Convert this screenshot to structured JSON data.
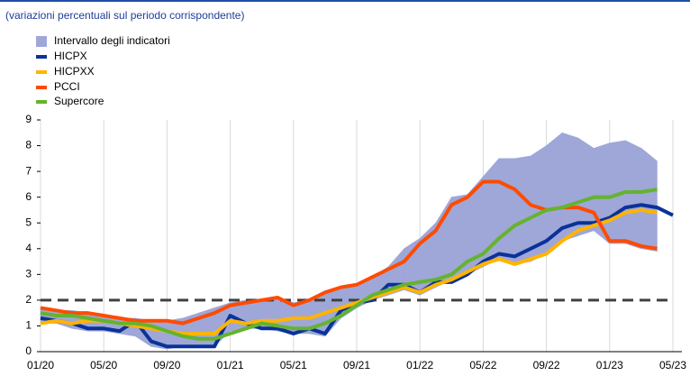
{
  "chart_data": {
    "type": "line",
    "subtitle": "(variazioni percentuali sul periodo corrispondente)",
    "categories": [
      "01/20",
      null,
      null,
      null,
      "05/20",
      null,
      null,
      null,
      "09/20",
      null,
      null,
      null,
      "01/21",
      null,
      null,
      null,
      "05/21",
      null,
      null,
      null,
      "09/21",
      null,
      null,
      null,
      "01/22",
      null,
      null,
      null,
      "05/22",
      null,
      null,
      null,
      "09/22",
      null,
      null,
      null,
      "01/23",
      null,
      null,
      null,
      "05/23"
    ],
    "band": {
      "name": "Intervallo degli indicatori",
      "color": "#9ea7d8",
      "low": [
        1.1,
        1.1,
        0.9,
        0.8,
        0.8,
        0.7,
        0.6,
        0.2,
        0.1,
        0.2,
        0.2,
        0.2,
        0.8,
        0.9,
        0.9,
        0.8,
        0.7,
        0.7,
        0.6,
        1.3,
        1.7,
        2.0,
        2.2,
        2.4,
        2.2,
        2.5,
        2.8,
        3.0,
        3.3,
        3.6,
        3.4,
        3.5,
        3.8,
        4.3,
        4.5,
        4.7,
        4.2,
        4.2,
        4.0,
        3.9,
        null
      ],
      "high": [
        1.7,
        1.6,
        1.6,
        1.5,
        1.4,
        1.3,
        1.3,
        1.2,
        1.2,
        1.3,
        1.5,
        1.7,
        1.9,
        2.0,
        2.0,
        2.1,
        1.9,
        2.0,
        2.3,
        2.5,
        2.6,
        2.9,
        3.3,
        4.0,
        4.4,
        5.0,
        6.0,
        6.1,
        6.8,
        7.5,
        7.5,
        7.6,
        8.0,
        8.5,
        8.3,
        7.9,
        8.1,
        8.2,
        7.9,
        7.4,
        null
      ]
    },
    "series": [
      {
        "name": "HICPX",
        "color": "#0a3299",
        "values": [
          1.3,
          1.2,
          1.1,
          0.9,
          0.9,
          0.8,
          1.2,
          0.4,
          0.2,
          0.2,
          0.2,
          0.2,
          1.4,
          1.1,
          0.9,
          0.9,
          0.7,
          0.9,
          0.7,
          1.6,
          1.9,
          2.0,
          2.6,
          2.6,
          2.3,
          2.7,
          2.7,
          3.0,
          3.5,
          3.8,
          3.7,
          4.0,
          4.3,
          4.8,
          5.0,
          5.0,
          5.2,
          5.6,
          5.7,
          5.6,
          5.3
        ]
      },
      {
        "name": "HICPXX",
        "color": "#ffb400",
        "values": [
          1.1,
          1.2,
          1.1,
          1.2,
          1.2,
          1.1,
          1.0,
          0.9,
          0.8,
          0.7,
          0.7,
          0.7,
          1.2,
          1.1,
          1.2,
          1.2,
          1.3,
          1.3,
          1.5,
          1.7,
          1.9,
          2.1,
          2.3,
          2.5,
          2.3,
          2.6,
          2.8,
          3.1,
          3.4,
          3.6,
          3.4,
          3.6,
          3.8,
          4.3,
          4.7,
          4.9,
          5.1,
          5.4,
          5.5,
          5.4,
          null
        ]
      },
      {
        "name": "PCCI",
        "color": "#ff4b00",
        "values": [
          1.7,
          1.6,
          1.5,
          1.5,
          1.4,
          1.3,
          1.2,
          1.2,
          1.2,
          1.1,
          1.3,
          1.5,
          1.8,
          1.9,
          2.0,
          2.1,
          1.8,
          2.0,
          2.3,
          2.5,
          2.6,
          2.9,
          3.2,
          3.5,
          4.2,
          4.7,
          5.7,
          6.0,
          6.6,
          6.6,
          6.3,
          5.7,
          5.5,
          5.6,
          5.6,
          5.4,
          4.3,
          4.3,
          4.1,
          4.0,
          null
        ]
      },
      {
        "name": "Supercore",
        "color": "#65b32e",
        "values": [
          1.5,
          1.4,
          1.4,
          1.3,
          1.2,
          1.1,
          1.1,
          1.0,
          0.8,
          0.6,
          0.5,
          0.5,
          0.7,
          0.9,
          1.1,
          1.0,
          0.9,
          0.9,
          1.1,
          1.4,
          1.8,
          2.2,
          2.4,
          2.6,
          2.7,
          2.8,
          3.0,
          3.5,
          3.8,
          4.4,
          4.9,
          5.2,
          5.5,
          5.6,
          5.8,
          6.0,
          6.0,
          6.2,
          6.2,
          6.3,
          null
        ]
      }
    ],
    "reference_line": {
      "value": 2,
      "color": "#404040"
    },
    "ylim": [
      0,
      9
    ],
    "yticks": [
      0,
      1,
      2,
      3,
      4,
      5,
      6,
      7,
      8,
      9
    ],
    "grid": "x"
  }
}
